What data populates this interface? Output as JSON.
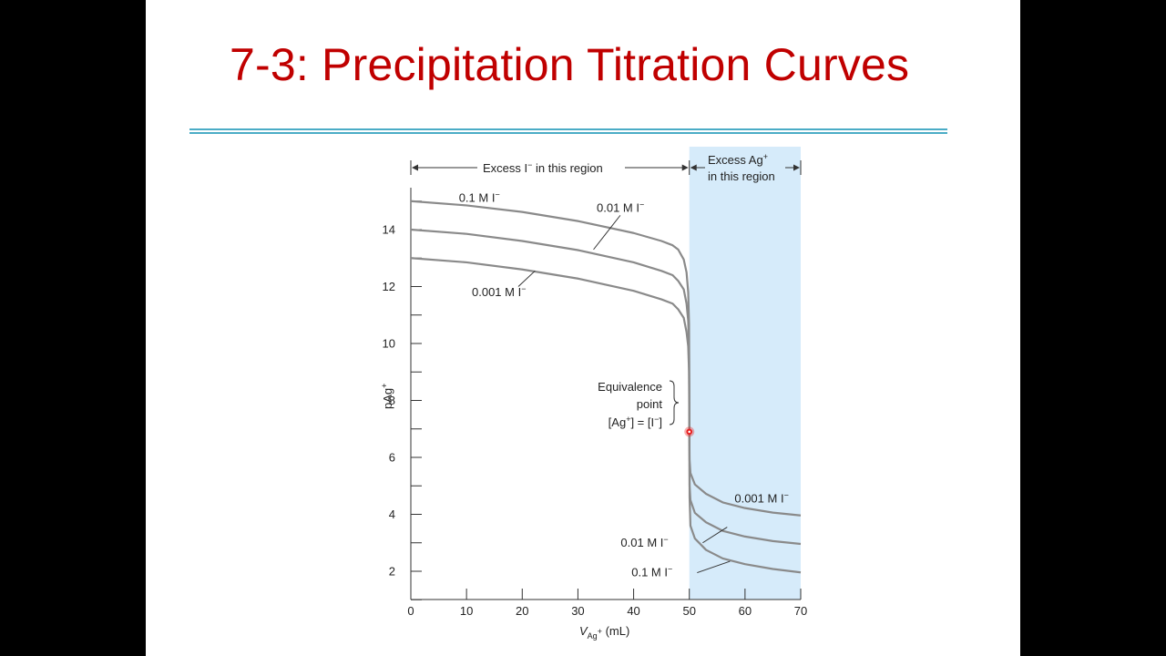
{
  "slide": {
    "title": "7-3: Precipitation Titration Curves"
  },
  "colors": {
    "title": "#c00000",
    "rule": "#4bacc6",
    "excess_region": "#d6ebfa",
    "curve": "#8a8a8a",
    "pointer": "#e81e1e"
  },
  "chart_data": {
    "type": "line",
    "xlabel_base": "V",
    "xlabel_sub": "Ag",
    "xlabel_sub_sup": "+",
    "xlabel_unit": " (mL)",
    "ylabel_base": "pAg",
    "ylabel_sup": "+",
    "xlim": [
      0,
      70
    ],
    "ylim": [
      1,
      15.5
    ],
    "xticks": [
      0,
      10,
      20,
      30,
      40,
      50,
      60,
      70
    ],
    "yticks_labeled": [
      2,
      4,
      6,
      8,
      10,
      12,
      14
    ],
    "yticks_minor": [
      1,
      3,
      5,
      7,
      9,
      11,
      13,
      15
    ],
    "shaded_region": {
      "x": [
        50,
        70
      ],
      "label_line1": "Excess Ag",
      "label_sup": "+",
      "label_line2": "in this region"
    },
    "left_region": {
      "x": [
        0,
        50
      ],
      "label": "Excess I",
      "label_sup": "−",
      "label_rest": " in this region"
    },
    "equivalence_point": {
      "x": 50,
      "y": 6.9,
      "line1": "Equivalence",
      "line2": "point",
      "line3_a": "[Ag",
      "line3_sup1": "+",
      "line3_b": "] = [I",
      "line3_sup2": "−",
      "line3_c": "]"
    },
    "series": [
      {
        "name": "0.1 M I−",
        "label": "0.1 M I",
        "label_sup": "−",
        "points": [
          [
            0,
            15.0
          ],
          [
            10,
            14.85
          ],
          [
            20,
            14.62
          ],
          [
            30,
            14.3
          ],
          [
            40,
            13.88
          ],
          [
            45,
            13.6
          ],
          [
            47,
            13.45
          ],
          [
            48,
            13.3
          ],
          [
            49,
            12.95
          ],
          [
            49.5,
            12.5
          ],
          [
            49.8,
            11.8
          ],
          [
            49.95,
            10.7
          ],
          [
            50,
            8.5
          ],
          [
            50.05,
            4.6
          ],
          [
            50.2,
            3.6
          ],
          [
            51,
            3.15
          ],
          [
            53,
            2.75
          ],
          [
            56,
            2.45
          ],
          [
            60,
            2.25
          ],
          [
            65,
            2.08
          ],
          [
            70,
            1.96
          ]
        ],
        "label_left": {
          "x": 15,
          "y": 15.1
        },
        "label_right": {
          "x": 46,
          "y": 1.95
        }
      },
      {
        "name": "0.01 M I−",
        "label": "0.01 M I",
        "label_sup": "−",
        "points": [
          [
            0,
            14.0
          ],
          [
            10,
            13.85
          ],
          [
            20,
            13.6
          ],
          [
            30,
            13.28
          ],
          [
            40,
            12.85
          ],
          [
            45,
            12.55
          ],
          [
            47,
            12.4
          ],
          [
            48,
            12.2
          ],
          [
            49,
            11.9
          ],
          [
            49.5,
            11.4
          ],
          [
            49.8,
            10.8
          ],
          [
            49.95,
            9.7
          ],
          [
            50,
            7.5
          ],
          [
            50.05,
            5.0
          ],
          [
            50.2,
            4.5
          ],
          [
            51,
            4.05
          ],
          [
            53,
            3.72
          ],
          [
            56,
            3.42
          ],
          [
            60,
            3.22
          ],
          [
            65,
            3.06
          ],
          [
            70,
            2.96
          ]
        ],
        "label_left": {
          "x": 36.8,
          "y": 14.75
        },
        "label_right": {
          "x": 45.7,
          "y": 3.0
        }
      },
      {
        "name": "0.001 M I−",
        "label": "0.001 M I",
        "label_sup": "−",
        "points": [
          [
            0,
            13.0
          ],
          [
            10,
            12.85
          ],
          [
            20,
            12.6
          ],
          [
            30,
            12.28
          ],
          [
            40,
            11.85
          ],
          [
            45,
            11.55
          ],
          [
            47,
            11.4
          ],
          [
            48,
            11.2
          ],
          [
            49,
            10.9
          ],
          [
            49.5,
            10.4
          ],
          [
            49.8,
            9.9
          ],
          [
            49.95,
            9.0
          ],
          [
            50,
            7.0
          ],
          [
            50.05,
            5.9
          ],
          [
            50.2,
            5.45
          ],
          [
            51,
            5.05
          ],
          [
            53,
            4.72
          ],
          [
            56,
            4.42
          ],
          [
            60,
            4.22
          ],
          [
            65,
            4.06
          ],
          [
            70,
            3.96
          ]
        ],
        "label_left": {
          "x": 17.5,
          "y": 11.8
        },
        "label_right": {
          "x": 64.5,
          "y": 4.55
        }
      }
    ]
  }
}
